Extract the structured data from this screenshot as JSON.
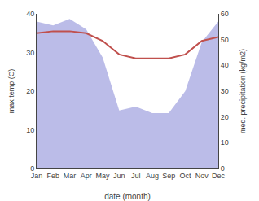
{
  "chart_data": {
    "type": "line",
    "categories": [
      "Jan",
      "Feb",
      "Mar",
      "Apr",
      "May",
      "Jun",
      "Jul",
      "Aug",
      "Sep",
      "Oct",
      "Nov",
      "Dec"
    ],
    "series": [
      {
        "type": "area",
        "axis": "y2",
        "color": "#bbbce8",
        "values": [
          57.0,
          55.5,
          58.0,
          54.0,
          43.0,
          22.5,
          24.0,
          21.5,
          21.5,
          30.0,
          49.0,
          57.0
        ]
      },
      {
        "type": "line",
        "color": "#c0504d",
        "values": [
          35.0,
          35.5,
          35.5,
          35.0,
          33.0,
          29.5,
          28.5,
          28.5,
          28.5,
          29.5,
          33.0,
          34.0
        ]
      }
    ],
    "xlabel": "date (month)",
    "ylabel": "max temp (C)",
    "y2label": "med. precipitation (kg/m2)",
    "ylim": [
      0,
      40
    ],
    "yticks": [
      0,
      10,
      20,
      30,
      40
    ],
    "y2lim": [
      0,
      60
    ],
    "y2ticks": [
      0,
      10,
      20,
      30,
      40,
      50,
      60
    ],
    "grid": false
  }
}
